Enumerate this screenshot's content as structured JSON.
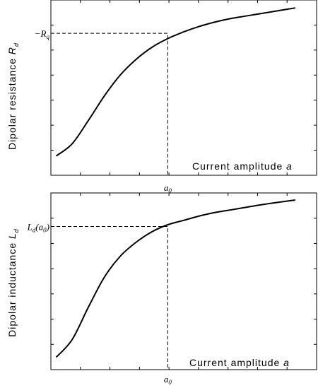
{
  "chart_data": [
    {
      "type": "line",
      "title": "",
      "xlabel": "Current amplitude",
      "xlabel_var": "a",
      "ylabel": "Dipolar resistance",
      "ylabel_var": "R",
      "ylabel_sub": "d",
      "marker_x_label": "a",
      "marker_x_sub": "0",
      "marker_y_label": "−R",
      "marker_y_sub": "q",
      "x": [
        0.02,
        0.08,
        0.14,
        0.2,
        0.26,
        0.32,
        0.38,
        0.44,
        0.5,
        0.56,
        0.62,
        0.68,
        0.74,
        0.8,
        0.86,
        0.92
      ],
      "y": [
        0.11,
        0.18,
        0.31,
        0.45,
        0.57,
        0.66,
        0.73,
        0.78,
        0.818,
        0.85,
        0.875,
        0.895,
        0.91,
        0.925,
        0.94,
        0.955
      ],
      "marker_x": 0.44,
      "marker_y": 0.81,
      "xlim": [
        0,
        1
      ],
      "ylim": [
        0,
        1
      ],
      "grid": false
    },
    {
      "type": "line",
      "title": "",
      "xlabel": "Current amplitude",
      "xlabel_var": "a",
      "ylabel": "Dipolar inductance",
      "ylabel_var": "L",
      "ylabel_sub": "d",
      "marker_x_label": "a",
      "marker_x_sub": "0",
      "marker_y_label": "L",
      "marker_y_sub": "d",
      "marker_y_arg": "(a",
      "marker_y_arg_sub": "0",
      "marker_y_arg_close": ")",
      "x": [
        0.02,
        0.08,
        0.14,
        0.2,
        0.26,
        0.32,
        0.38,
        0.44,
        0.5,
        0.56,
        0.62,
        0.68,
        0.74,
        0.8,
        0.86,
        0.92
      ],
      "y": [
        0.07,
        0.17,
        0.35,
        0.52,
        0.64,
        0.72,
        0.78,
        0.82,
        0.845,
        0.87,
        0.89,
        0.905,
        0.92,
        0.935,
        0.948,
        0.96
      ],
      "marker_x": 0.44,
      "marker_y": 0.81,
      "xlim": [
        0,
        1
      ],
      "ylim": [
        0,
        1
      ],
      "grid": false
    }
  ]
}
